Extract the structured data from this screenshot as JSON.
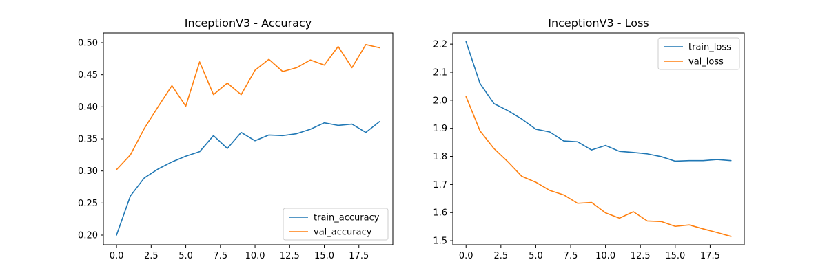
{
  "chart_data": [
    {
      "type": "line",
      "title": "InceptionV3 - Accuracy",
      "xlabel": "",
      "ylabel": "",
      "x": [
        0,
        1,
        2,
        3,
        4,
        5,
        6,
        7,
        8,
        9,
        10,
        11,
        12,
        13,
        14,
        15,
        16,
        17,
        18,
        19
      ],
      "xlim": [
        -0.95,
        19.95
      ],
      "ylim": [
        0.185,
        0.515
      ],
      "xticks": [
        0,
        2.5,
        5,
        7.5,
        10,
        12.5,
        15,
        17.5
      ],
      "xtick_labels": [
        "0.0",
        "2.5",
        "5.0",
        "7.5",
        "10.0",
        "12.5",
        "15.0",
        "17.5"
      ],
      "yticks": [
        0.2,
        0.25,
        0.3,
        0.35,
        0.4,
        0.45,
        0.5
      ],
      "ytick_labels": [
        "0.20",
        "0.25",
        "0.30",
        "0.35",
        "0.40",
        "0.45",
        "0.50"
      ],
      "grid": false,
      "legend_position": "lower-right",
      "series": [
        {
          "name": "train_accuracy",
          "color": "#1f77b4",
          "values": [
            0.2,
            0.261,
            0.289,
            0.303,
            0.314,
            0.323,
            0.33,
            0.355,
            0.335,
            0.36,
            0.347,
            0.356,
            0.355,
            0.358,
            0.365,
            0.375,
            0.371,
            0.373,
            0.36,
            0.377
          ]
        },
        {
          "name": "val_accuracy",
          "color": "#ff7f0e",
          "values": [
            0.302,
            0.325,
            0.366,
            0.4,
            0.433,
            0.401,
            0.47,
            0.419,
            0.437,
            0.419,
            0.457,
            0.474,
            0.455,
            0.461,
            0.473,
            0.465,
            0.494,
            0.461,
            0.497,
            0.492
          ]
        }
      ]
    },
    {
      "type": "line",
      "title": "InceptionV3 - Loss",
      "xlabel": "",
      "ylabel": "",
      "x": [
        0,
        1,
        2,
        3,
        4,
        5,
        6,
        7,
        8,
        9,
        10,
        11,
        12,
        13,
        14,
        15,
        16,
        17,
        18,
        19
      ],
      "xlim": [
        -0.95,
        19.95
      ],
      "ylim": [
        1.4855,
        2.2395
      ],
      "xticks": [
        0,
        2.5,
        5,
        7.5,
        10,
        12.5,
        15,
        17.5
      ],
      "xtick_labels": [
        "0.0",
        "2.5",
        "5.0",
        "7.5",
        "10.0",
        "12.5",
        "15.0",
        "17.5"
      ],
      "yticks": [
        1.5,
        1.6,
        1.7,
        1.8,
        1.9,
        2.0,
        2.1,
        2.2
      ],
      "ytick_labels": [
        "1.5",
        "1.6",
        "1.7",
        "1.8",
        "1.9",
        "2.0",
        "2.1",
        "2.2"
      ],
      "grid": false,
      "legend_position": "upper-right",
      "series": [
        {
          "name": "train_loss",
          "color": "#1f77b4",
          "values": [
            2.209,
            2.06,
            1.988,
            1.963,
            1.933,
            1.897,
            1.887,
            1.855,
            1.852,
            1.823,
            1.839,
            1.818,
            1.814,
            1.809,
            1.799,
            1.783,
            1.785,
            1.785,
            1.789,
            1.785
          ]
        },
        {
          "name": "val_loss",
          "color": "#ff7f0e",
          "values": [
            2.013,
            1.891,
            1.828,
            1.781,
            1.729,
            1.708,
            1.679,
            1.663,
            1.633,
            1.636,
            1.599,
            1.58,
            1.603,
            1.57,
            1.568,
            1.551,
            1.556,
            1.542,
            1.529,
            1.515
          ]
        }
      ]
    }
  ]
}
